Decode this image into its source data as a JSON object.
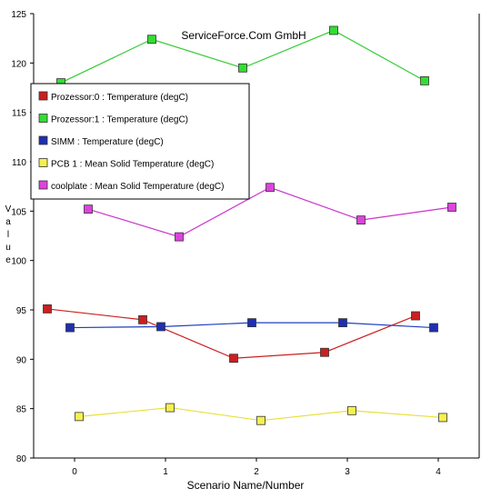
{
  "chart_data": {
    "type": "line",
    "title": "ServiceForce.Com GmbH",
    "xlabel": "Scenario Name/Number",
    "ylabel": "Value",
    "ylim": [
      80,
      125
    ],
    "xlim": [
      -0.45,
      4.45
    ],
    "x_ticks": [
      0,
      1,
      2,
      3,
      4
    ],
    "y_ticks": [
      80,
      85,
      90,
      95,
      100,
      105,
      110,
      115,
      120,
      125
    ],
    "legend_position": "left",
    "grid": false,
    "series": [
      {
        "name": "Prozessor:0 : Temperature (degC)",
        "color": "#cc1f1f",
        "marker_color": "#cc1f1f",
        "x": [
          -0.3,
          0.75,
          1.75,
          2.75,
          3.75
        ],
        "values": [
          95.1,
          94.0,
          90.1,
          90.7,
          94.4
        ]
      },
      {
        "name": "Prozessor:1 : Temperature (degC)",
        "color": "#33cc33",
        "marker_color": "#33dd33",
        "x": [
          -0.15,
          0.85,
          1.85,
          2.85,
          3.85
        ],
        "values": [
          118.0,
          122.4,
          119.5,
          123.3,
          118.2
        ]
      },
      {
        "name": "SIMM : Temperature (degC)",
        "color": "#1f3fbf",
        "marker_color": "#1f2fb0",
        "x": [
          -0.05,
          0.95,
          1.95,
          2.95,
          3.95
        ],
        "values": [
          93.2,
          93.3,
          93.7,
          93.7,
          93.2
        ]
      },
      {
        "name": "PCB 1 : Mean Solid Temperature (degC)",
        "color": "#e8e03a",
        "marker_color": "#f5f050",
        "x": [
          0.05,
          1.05,
          2.05,
          3.05,
          4.05
        ],
        "values": [
          84.2,
          85.1,
          83.8,
          84.8,
          84.1
        ]
      },
      {
        "name": "coolplate : Mean Solid Temperature (degC)",
        "color": "#cc33cc",
        "marker_color": "#dd44dd",
        "x": [
          0.15,
          1.15,
          2.15,
          3.15,
          4.15
        ],
        "values": [
          105.2,
          102.4,
          107.4,
          104.1,
          105.4
        ]
      }
    ]
  }
}
